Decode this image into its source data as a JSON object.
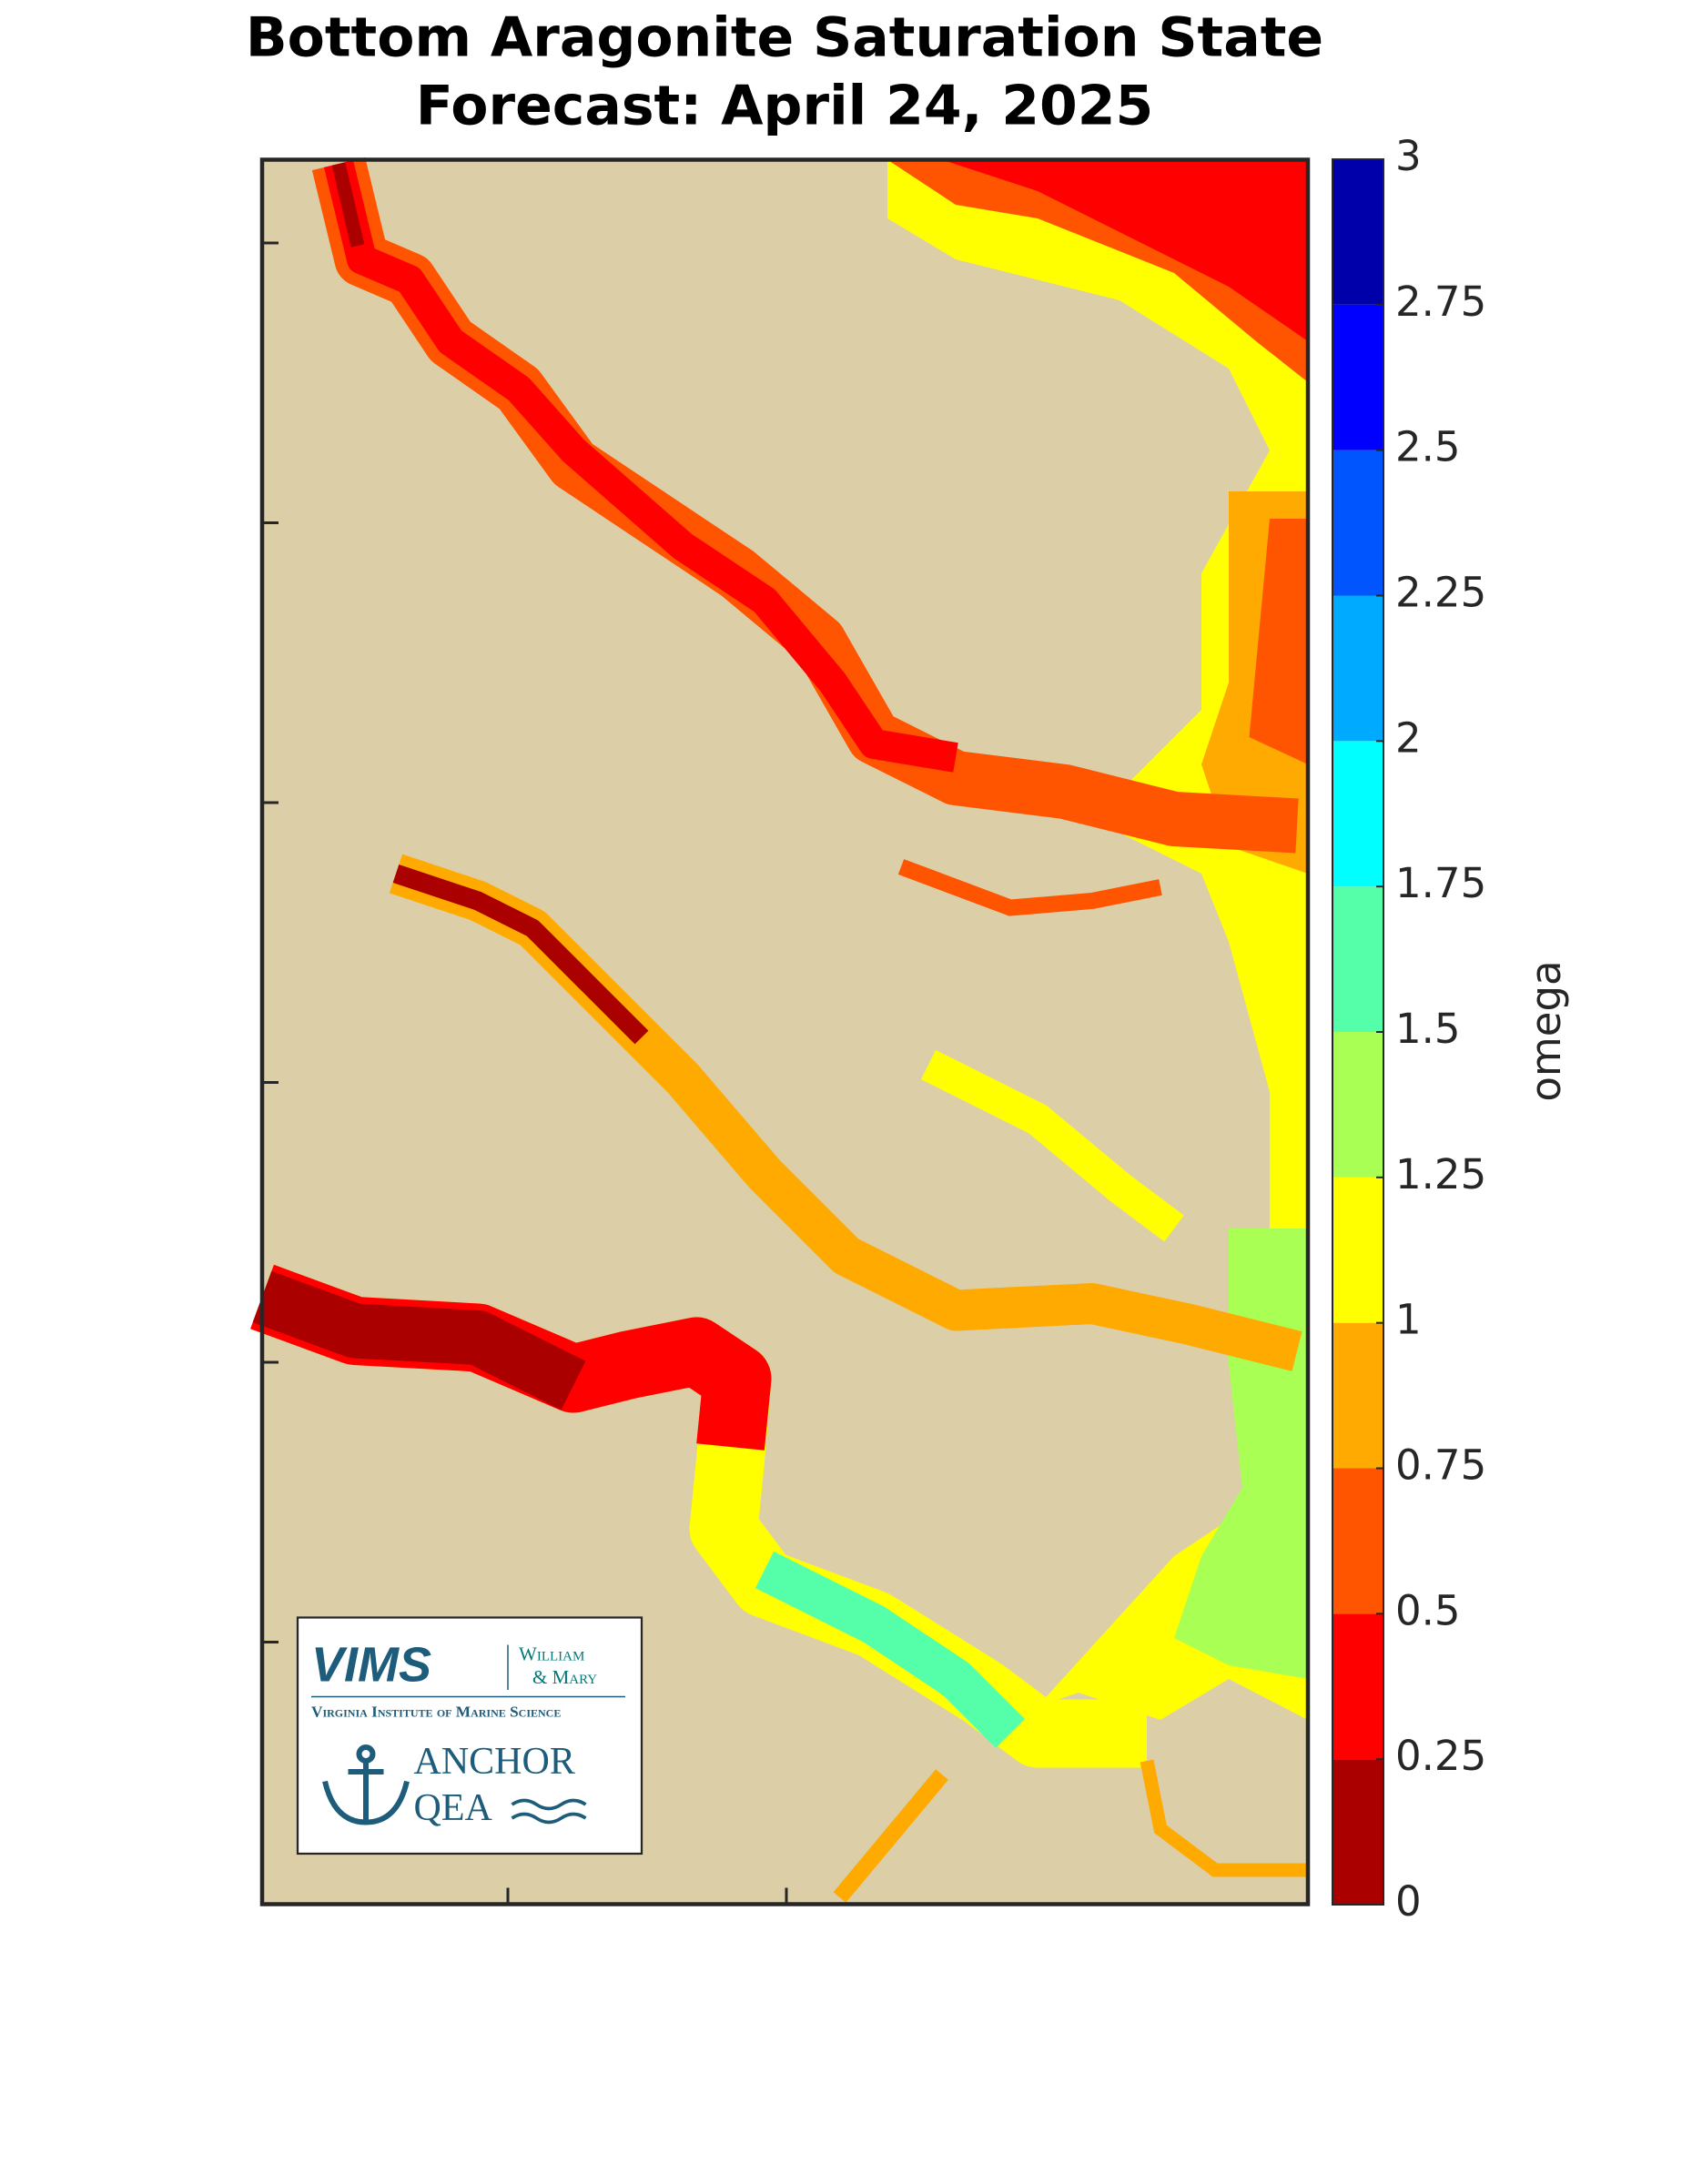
{
  "title": [
    "Bottom Aragonite Saturation State",
    "Forecast: April 24, 2025"
  ],
  "colorbar": {
    "label": "omega",
    "lim": [
      0,
      3
    ],
    "ticks": [
      0,
      0.25,
      0.5,
      0.75,
      1,
      1.25,
      1.5,
      1.75,
      2,
      2.25,
      2.5,
      2.75,
      3
    ],
    "colors": [
      "#aa0000",
      "#ff0000",
      "#ff5500",
      "#ffaa00",
      "#ffff00",
      "#aaff55",
      "#55ffaa",
      "#00ffff",
      "#00aaff",
      "#0055ff",
      "#0000ff",
      "#0000aa"
    ]
  },
  "logo": {
    "vims": "VIMS",
    "wm": [
      "William",
      "& Mary"
    ],
    "institute": "Virginia Institute of Marine Science",
    "anchor": [
      "ANCHOR",
      "QEA"
    ]
  }
}
